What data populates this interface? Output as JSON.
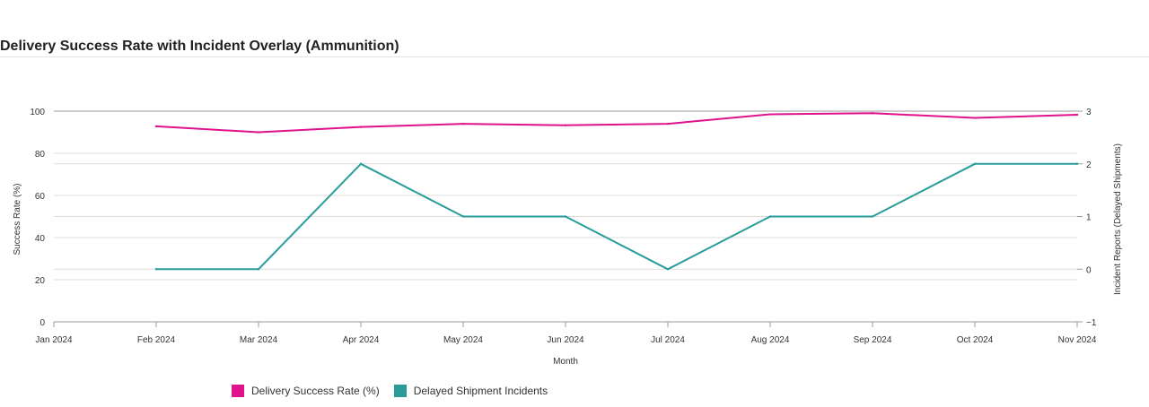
{
  "header": {
    "title": "Delivery Success Rate with Incident Overlay (Ammunition)"
  },
  "chart_data": {
    "type": "line",
    "title": "Delivery Success Rate with Incident Overlay (Ammunition)",
    "xlabel": "Month",
    "ylabel": "Success Rate (%)",
    "y2label": "Incident Reports (Delayed Shipments)",
    "categories": [
      "Jan 2024",
      "Feb 2024",
      "Mar 2024",
      "Apr 2024",
      "May 2024",
      "Jun 2024",
      "Jul 2024",
      "Aug 2024",
      "Sep 2024",
      "Oct 2024",
      "Nov 2024"
    ],
    "ylim": [
      0,
      100
    ],
    "yticks": [
      0,
      20,
      40,
      60,
      80,
      100
    ],
    "y2lim": [
      -1,
      3
    ],
    "y2ticks": [
      -1,
      0,
      1,
      2,
      3
    ],
    "y2tick_labels": [
      "−1",
      "0",
      "1",
      "2",
      "3"
    ],
    "grid": true,
    "legend_position": "bottom-left",
    "series": [
      {
        "name": "Delivery Success Rate (%)",
        "axis": "left",
        "color": "#e0128c",
        "x": [
          "Feb 2024",
          "Mar 2024",
          "Apr 2024",
          "May 2024",
          "Jun 2024",
          "Jul 2024",
          "Aug 2024",
          "Sep 2024",
          "Oct 2024",
          "Nov 2024"
        ],
        "values": [
          92.8,
          90.0,
          92.5,
          94.0,
          93.3,
          94.0,
          98.5,
          99.0,
          96.8,
          98.3
        ]
      },
      {
        "name": "Delayed Shipment Incidents",
        "axis": "right",
        "color": "#2a9d9a",
        "x": [
          "Feb 2024",
          "Mar 2024",
          "Apr 2024",
          "May 2024",
          "Jun 2024",
          "Jul 2024",
          "Aug 2024",
          "Sep 2024",
          "Oct 2024",
          "Nov 2024"
        ],
        "values": [
          0,
          0,
          2,
          1,
          1,
          0,
          1,
          1,
          2,
          2
        ]
      }
    ]
  }
}
